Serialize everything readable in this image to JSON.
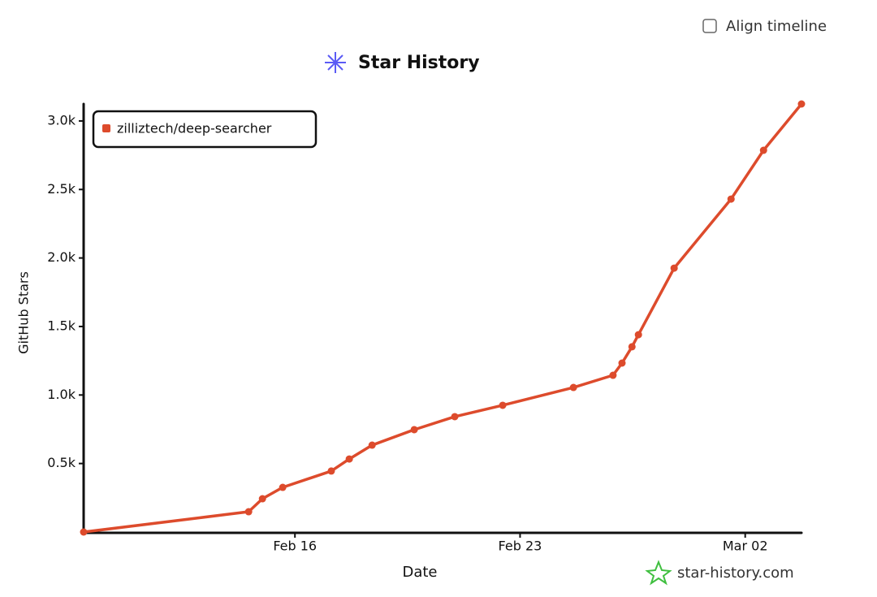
{
  "chart_data": {
    "type": "line",
    "title": "Star History",
    "x_label": "Date",
    "y_label": "GitHub Stars",
    "align_timeline_label": "Align timeline",
    "watermark": "star-history.com",
    "x": [
      9.43,
      14.56,
      14.99,
      15.62,
      17.13,
      17.69,
      18.4,
      19.71,
      20.97,
      22.46,
      24.66,
      25.89,
      26.17,
      26.48,
      26.68,
      27.79,
      29.56,
      30.57,
      31.75
    ],
    "series": [
      {
        "name": "zilliztech/deep-searcher",
        "color": "#dd4b2c",
        "values": [
          0,
          148,
          243,
          326,
          445,
          533,
          634,
          747,
          842,
          925,
          1055,
          1144,
          1233,
          1352,
          1440,
          1926,
          2430,
          2786,
          3124
        ]
      }
    ],
    "xlim": [
      9.43,
      31.75
    ],
    "xticks": [
      {
        "value": 16,
        "label": "Feb 16"
      },
      {
        "value": 23,
        "label": "Feb 23"
      },
      {
        "value": 30,
        "label": "Mar 02"
      }
    ],
    "ylim": [
      0,
      3124
    ],
    "yticks": [
      {
        "value": 500,
        "label": "0.5k"
      },
      {
        "value": 1000,
        "label": "1.0k"
      },
      {
        "value": 1500,
        "label": "1.5k"
      },
      {
        "value": 2000,
        "label": "2.0k"
      },
      {
        "value": 2500,
        "label": "2.5k"
      },
      {
        "value": 3000,
        "label": "3.0k"
      }
    ],
    "legend": "top-left"
  }
}
